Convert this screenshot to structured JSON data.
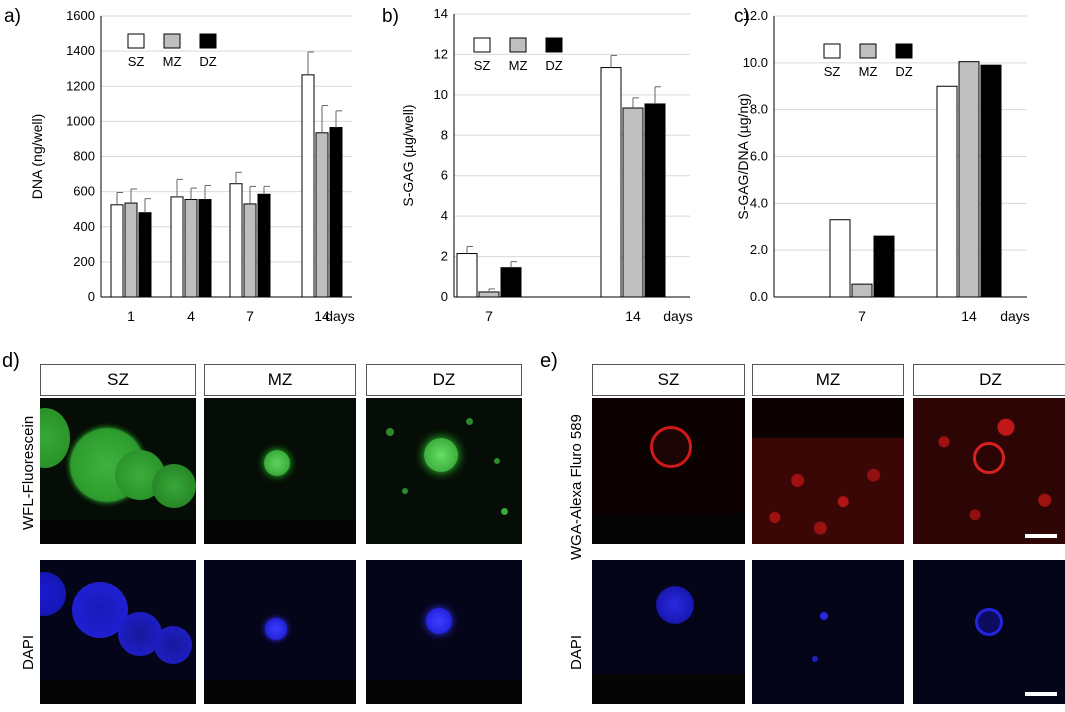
{
  "chart_data": [
    {
      "type": "bar",
      "panel_label": "a)",
      "categories": [
        "1",
        "4",
        "7",
        "14"
      ],
      "x_unit": "days",
      "ylabel": "DNA  (ng/well)",
      "ylim": [
        0,
        1600
      ],
      "yticks": [
        "0",
        "200",
        "400",
        "600",
        "800",
        "1000",
        "1200",
        "1400",
        "1600"
      ],
      "grid": true,
      "legend": "top-left",
      "series": [
        {
          "name": "SZ",
          "color": "#ffffff",
          "values": [
            525,
            570,
            645,
            1265
          ],
          "errors": [
            70,
            100,
            65,
            130
          ]
        },
        {
          "name": "MZ",
          "color": "#bfbfbf",
          "values": [
            535,
            555,
            530,
            935
          ],
          "errors": [
            80,
            65,
            100,
            155
          ]
        },
        {
          "name": "DZ",
          "color": "#000000",
          "values": [
            480,
            555,
            585,
            965
          ],
          "errors": [
            80,
            80,
            45,
            95
          ]
        }
      ]
    },
    {
      "type": "bar",
      "panel_label": "b)",
      "categories": [
        "7",
        "14"
      ],
      "x_unit": "days",
      "ylabel": "S-GAG  (µg/well)",
      "ylim": [
        0,
        14
      ],
      "yticks": [
        "0",
        "2",
        "4",
        "6",
        "8",
        "10",
        "12",
        "14"
      ],
      "grid": true,
      "legend": "top-left",
      "series": [
        {
          "name": "SZ",
          "color": "#ffffff",
          "values": [
            2.15,
            11.35
          ],
          "errors": [
            0.35,
            0.6
          ]
        },
        {
          "name": "MZ",
          "color": "#bfbfbf",
          "values": [
            0.25,
            9.35
          ],
          "errors": [
            0.15,
            0.5
          ]
        },
        {
          "name": "DZ",
          "color": "#000000",
          "values": [
            1.45,
            9.55
          ],
          "errors": [
            0.3,
            0.85
          ]
        }
      ]
    },
    {
      "type": "bar",
      "panel_label": "c)",
      "categories": [
        "7",
        "14"
      ],
      "x_unit": "days",
      "ylabel": "S-GAG/DNA (µg/ng)",
      "ylim": [
        0,
        12
      ],
      "yticks": [
        "0.0",
        "2.0",
        "4.0",
        "6.0",
        "8.0",
        "10.0",
        "12.0"
      ],
      "grid": true,
      "legend": "top-left",
      "series": [
        {
          "name": "SZ",
          "color": "#ffffff",
          "values": [
            3.3,
            9.0
          ]
        },
        {
          "name": "MZ",
          "color": "#bfbfbf",
          "values": [
            0.55,
            10.05
          ]
        },
        {
          "name": "DZ",
          "color": "#000000",
          "values": [
            2.6,
            9.9
          ]
        }
      ]
    }
  ],
  "panel_d": {
    "label": "d)",
    "columns": [
      "SZ",
      "MZ",
      "DZ"
    ],
    "rows": [
      "WFL-Fluorescein",
      "DAPI"
    ]
  },
  "panel_e": {
    "label": "e)",
    "columns": [
      "SZ",
      "MZ",
      "DZ"
    ],
    "rows": [
      "WGA-Alexa Fluro 589",
      "DAPI"
    ]
  }
}
